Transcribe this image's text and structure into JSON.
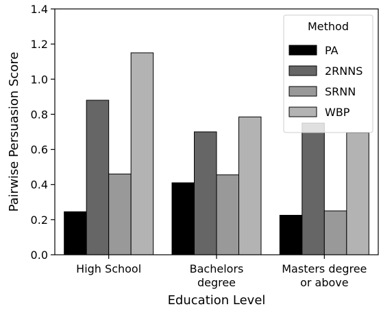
{
  "chart_data": {
    "type": "bar",
    "title": "",
    "xlabel": "Education Level",
    "ylabel": "Pairwise Persuasion Score",
    "ylim": [
      0,
      1.4
    ],
    "yticks": [
      "0.0",
      "0.2",
      "0.4",
      "0.6",
      "0.8",
      "1.0",
      "1.2",
      "1.4"
    ],
    "categories": [
      [
        "High School"
      ],
      [
        "Bachelors",
        "degree"
      ],
      [
        "Masters degree",
        "or above"
      ]
    ],
    "series": [
      {
        "name": "PA",
        "color": "#000000",
        "values": [
          0.245,
          0.41,
          0.225
        ]
      },
      {
        "name": "2RNNS",
        "color": "#666666",
        "values": [
          0.88,
          0.7,
          0.75
        ]
      },
      {
        "name": "SRNN",
        "color": "#999999",
        "values": [
          0.46,
          0.455,
          0.25
        ]
      },
      {
        "name": "WBP",
        "color": "#b3b3b3",
        "values": [
          1.15,
          0.785,
          0.695
        ]
      }
    ],
    "legend": {
      "title": "Method",
      "placement": "top-right"
    },
    "grid": false
  }
}
